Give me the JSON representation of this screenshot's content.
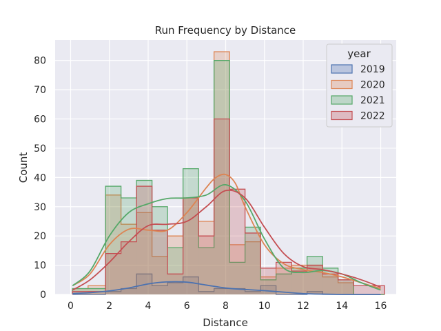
{
  "chart_data": {
    "type": "histogram",
    "title": "Run Frequency by Distance",
    "xlabel": "Distance",
    "ylabel": "Count",
    "xlim": [
      -0.8,
      16.8
    ],
    "ylim": [
      0,
      87
    ],
    "xticks": [
      0,
      2,
      4,
      6,
      8,
      10,
      12,
      14,
      16
    ],
    "yticks": [
      0,
      10,
      20,
      30,
      40,
      50,
      60,
      70,
      80
    ],
    "grid": true,
    "background": "#eaeaf2",
    "legend": {
      "title": "year",
      "position": "top-right"
    },
    "bin_edges": [
      0.1,
      0.9,
      1.8,
      2.6,
      3.4,
      4.2,
      5.0,
      5.8,
      6.6,
      7.4,
      8.2,
      9.0,
      9.8,
      10.6,
      11.4,
      12.2,
      13.0,
      13.8,
      14.6,
      15.4,
      16.2
    ],
    "series": [
      {
        "name": "2019",
        "color": "#4c72b0",
        "counts": [
          0,
          0,
          1,
          2,
          7,
          3,
          4,
          6,
          1,
          2,
          2,
          1,
          3,
          0,
          0,
          1,
          0,
          0,
          0,
          0
        ],
        "kde": [
          [
            0.1,
            0.3
          ],
          [
            1,
            0.6
          ],
          [
            2,
            1.2
          ],
          [
            3,
            2.2
          ],
          [
            4,
            3.6
          ],
          [
            5,
            4.3
          ],
          [
            6,
            4.2
          ],
          [
            7,
            3.2
          ],
          [
            8,
            2.2
          ],
          [
            9,
            1.7
          ],
          [
            10,
            1.3
          ],
          [
            11,
            0.8
          ],
          [
            12,
            0.3
          ],
          [
            13,
            0.1
          ],
          [
            14,
            0
          ],
          [
            15,
            0
          ],
          [
            16,
            0
          ]
        ]
      },
      {
        "name": "2020",
        "color": "#dd8452",
        "counts": [
          2,
          3,
          34,
          24,
          28,
          13,
          20,
          33,
          25,
          83,
          17,
          18,
          6,
          9,
          10,
          10,
          6,
          4,
          0,
          0
        ],
        "kde": [
          [
            0.1,
            3
          ],
          [
            1,
            7
          ],
          [
            2,
            17
          ],
          [
            3,
            22.3
          ],
          [
            4,
            22
          ],
          [
            5,
            22
          ],
          [
            6,
            28
          ],
          [
            7,
            36.5
          ],
          [
            7.5,
            40
          ],
          [
            8,
            41
          ],
          [
            8.5,
            38
          ],
          [
            9,
            30
          ],
          [
            10,
            17
          ],
          [
            11,
            10.5
          ],
          [
            12,
            8.5
          ],
          [
            13,
            7.5
          ],
          [
            14,
            6
          ],
          [
            15,
            4
          ],
          [
            16,
            2
          ]
        ]
      },
      {
        "name": "2021",
        "color": "#55a868",
        "counts": [
          2,
          2,
          37,
          33,
          39,
          30,
          16,
          43,
          16,
          80,
          11,
          23,
          5,
          7,
          9,
          13,
          9,
          5,
          0,
          0
        ],
        "kde": [
          [
            0.1,
            3
          ],
          [
            1,
            8
          ],
          [
            2,
            20
          ],
          [
            3,
            28
          ],
          [
            4,
            31
          ],
          [
            5,
            32.8
          ],
          [
            6,
            33
          ],
          [
            7,
            34
          ],
          [
            8,
            37.5
          ],
          [
            9,
            32
          ],
          [
            10,
            19
          ],
          [
            11,
            9
          ],
          [
            12,
            7.5
          ],
          [
            13,
            8.2
          ],
          [
            14,
            7
          ],
          [
            15,
            4
          ],
          [
            16,
            1.5
          ]
        ]
      },
      {
        "name": "2022",
        "color": "#c44e52",
        "counts": [
          1,
          1,
          14,
          18,
          37,
          22,
          7,
          33,
          20,
          60,
          36,
          21,
          9,
          11,
          8,
          10,
          7,
          5,
          3,
          3
        ],
        "kde": [
          [
            0.1,
            1.5
          ],
          [
            1,
            5
          ],
          [
            2,
            11
          ],
          [
            3,
            18
          ],
          [
            4,
            23.5
          ],
          [
            5,
            24
          ],
          [
            6,
            25
          ],
          [
            7,
            30
          ],
          [
            8,
            35.5
          ],
          [
            9,
            33
          ],
          [
            10,
            23
          ],
          [
            11,
            14
          ],
          [
            12,
            9.5
          ],
          [
            13,
            8.5
          ],
          [
            14,
            7
          ],
          [
            15,
            5
          ],
          [
            16,
            2.5
          ]
        ]
      }
    ]
  }
}
